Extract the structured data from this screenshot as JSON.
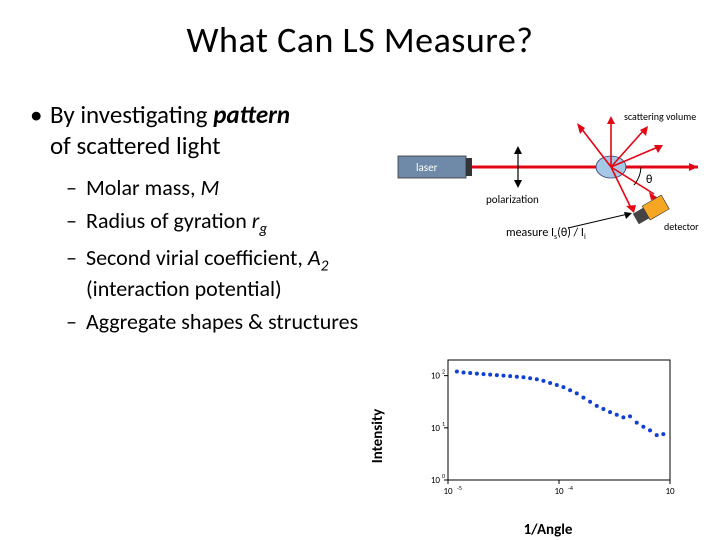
{
  "title": "What Can LS Measure?",
  "bullets": {
    "main": "By investigating",
    "main_ital": "pattern",
    "main_tail": "of scattered light",
    "sub": [
      {
        "pre": "Molar mass, ",
        "var": "M"
      },
      {
        "pre": "Radius of gyration ",
        "var": "r",
        "sub": "g"
      },
      {
        "pre": "Second virial coefficient, ",
        "var": "A",
        "sub": "2",
        "post": " (interaction potential)"
      },
      {
        "pre": "Aggregate shapes & structures"
      }
    ]
  },
  "schematic": {
    "labels": {
      "laser": "laser",
      "polarization": "polarization",
      "scattering_volume": "scattering volume",
      "detector": "detector",
      "measure": "measure I",
      "measure_sub": "s",
      "measure_tail": "(θ) / I",
      "measure_tail_sub": "i",
      "theta": "θ"
    },
    "colors": {
      "laser_body": "#6e8aa8",
      "laser_beam": "#e30613",
      "scatter_arrows": "#e30613",
      "sample": "#a7c7e7",
      "detector_body": "#f5a623",
      "detector_front": "#444444",
      "text": "#000000",
      "annotation": "#000000"
    }
  },
  "plot": {
    "type": "scatter",
    "xlabel": "1/Angle",
    "ylabel": "Intensity",
    "xscale": "log",
    "yscale": "log",
    "xlim_exp": [
      -5,
      -3
    ],
    "ylim_exp": [
      0,
      2.3
    ],
    "xtick_exp": [
      -5,
      -4,
      -3
    ],
    "ytick_exp": [
      0,
      1,
      2
    ],
    "marker_color": "#1040d0",
    "marker_size": 2,
    "axis_color": "#000000",
    "background": "#ffffff",
    "points_log": [
      [
        -4.92,
        2.08
      ],
      [
        -4.86,
        2.06
      ],
      [
        -4.8,
        2.05
      ],
      [
        -4.74,
        2.04
      ],
      [
        -4.68,
        2.03
      ],
      [
        -4.62,
        2.02
      ],
      [
        -4.56,
        2.01
      ],
      [
        -4.5,
        2.0
      ],
      [
        -4.44,
        1.99
      ],
      [
        -4.38,
        1.98
      ],
      [
        -4.32,
        1.97
      ],
      [
        -4.26,
        1.95
      ],
      [
        -4.2,
        1.93
      ],
      [
        -4.14,
        1.9
      ],
      [
        -4.08,
        1.86
      ],
      [
        -4.02,
        1.82
      ],
      [
        -3.96,
        1.78
      ],
      [
        -3.9,
        1.72
      ],
      [
        -3.84,
        1.66
      ],
      [
        -3.78,
        1.58
      ],
      [
        -3.72,
        1.5
      ],
      [
        -3.66,
        1.42
      ],
      [
        -3.6,
        1.36
      ],
      [
        -3.54,
        1.3
      ],
      [
        -3.48,
        1.25
      ],
      [
        -3.42,
        1.2
      ],
      [
        -3.36,
        1.22
      ],
      [
        -3.3,
        1.1
      ],
      [
        -3.24,
        1.02
      ],
      [
        -3.18,
        0.95
      ],
      [
        -3.12,
        0.86
      ],
      [
        -3.06,
        0.88
      ]
    ]
  }
}
